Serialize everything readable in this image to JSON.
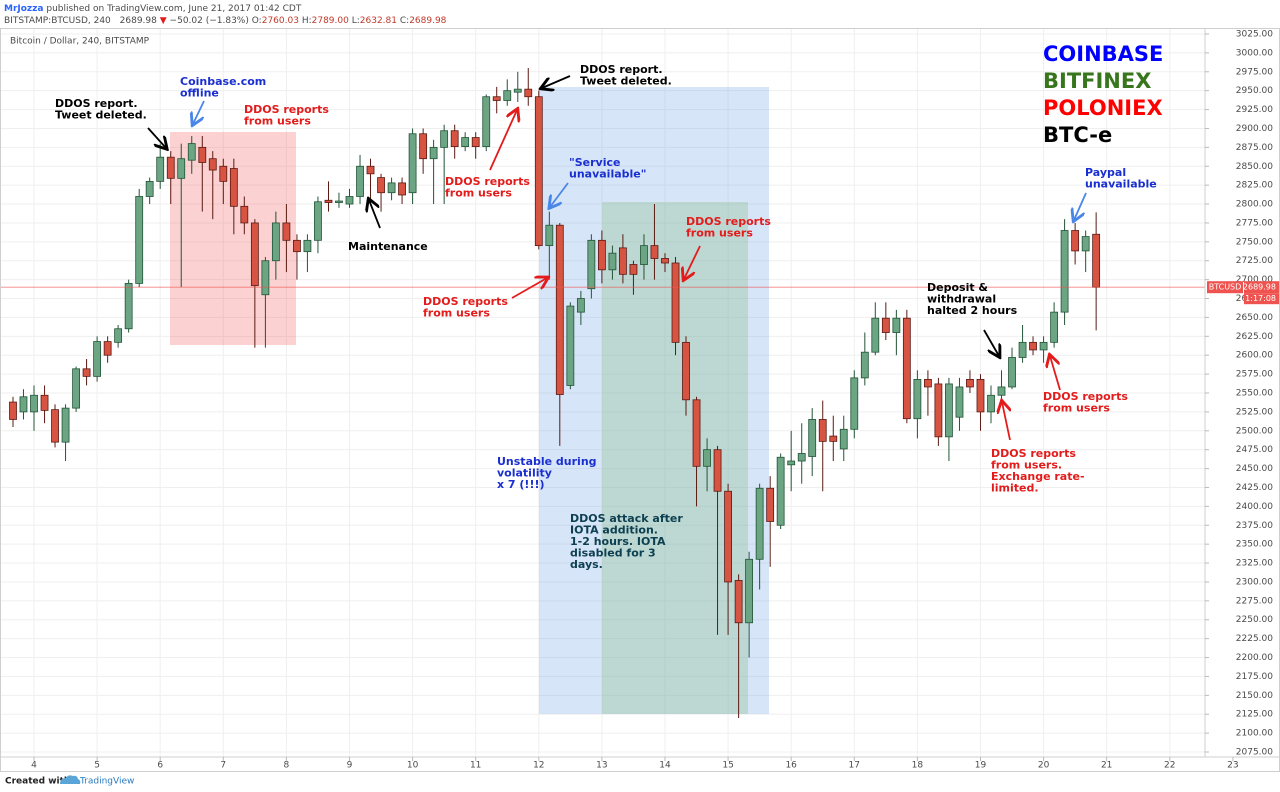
{
  "header": {
    "author": "MrJozza",
    "published": "published on TradingView.com, June 21, 2017 01:42 CDT",
    "symbol": "BITSTAMP:BTCUSD, 240",
    "price": "2689.98",
    "direction": "▼",
    "change": "−50.02 (−1.83%)",
    "ohlc": [
      {
        "label": "O:",
        "value": "2760.03"
      },
      {
        "label": "H:",
        "value": "2789.00"
      },
      {
        "label": "L:",
        "value": "2632.81"
      },
      {
        "label": "C:",
        "value": "2689.98"
      }
    ]
  },
  "footer": {
    "created": "Created with",
    "brand": "TradingView"
  },
  "chart_data": {
    "type": "candlestick",
    "title": "Bitcoin / Dollar, 240, BITSTAMP",
    "up_color": "#6ba583",
    "up_border": "#225437",
    "down_color": "#d75442",
    "down_border": "#5b1a13",
    "x": [
      3.667,
      3.833,
      4,
      4.167,
      4.333,
      4.5,
      4.667,
      4.833,
      5,
      5.167,
      5.333,
      5.5,
      5.667,
      5.833,
      6,
      6.167,
      6.333,
      6.5,
      6.667,
      6.833,
      7,
      7.167,
      7.333,
      7.5,
      7.667,
      7.833,
      8,
      8.167,
      8.333,
      8.5,
      8.667,
      8.833,
      9,
      9.167,
      9.333,
      9.5,
      9.667,
      9.833,
      10,
      10.167,
      10.333,
      10.5,
      10.667,
      10.833,
      11,
      11.167,
      11.333,
      11.5,
      11.667,
      11.833,
      12,
      12.167,
      12.333,
      12.5,
      12.667,
      12.833,
      13,
      13.167,
      13.333,
      13.5,
      13.667,
      13.833,
      14,
      14.167,
      14.333,
      14.5,
      14.667,
      14.833,
      15,
      15.167,
      15.333,
      15.5,
      15.667,
      15.833,
      16,
      16.167,
      16.333,
      16.5,
      16.667,
      16.833,
      17,
      17.167,
      17.333,
      17.5,
      17.667,
      17.833,
      18,
      18.167,
      18.333,
      18.5,
      18.667,
      18.833,
      19,
      19.167,
      19.333,
      19.5,
      19.667,
      19.833,
      20,
      20.167,
      20.333,
      20.5,
      20.667,
      20.833
    ],
    "open": [
      2538,
      2525,
      2525,
      2547,
      2528,
      2485,
      2530,
      2582,
      2572,
      2618,
      2617,
      2635,
      2695,
      2810,
      2830,
      2862,
      2834,
      2858,
      2875,
      2860,
      2850,
      2847,
      2797,
      2775,
      2680,
      2725,
      2775,
      2752,
      2737,
      2752,
      2805,
      2802,
      2800,
      2810,
      2850,
      2835,
      2815,
      2828,
      2815,
      2893,
      2860,
      2875,
      2897,
      2876,
      2888,
      2876,
      2942,
      2937,
      2948,
      2952,
      2942,
      2745,
      2772,
      2560,
      2657,
      2688,
      2752,
      2713,
      2742,
      2720,
      2720,
      2745,
      2728,
      2722,
      2617,
      2541,
      2453,
      2475,
      2420,
      2302,
      2246,
      2330,
      2424,
      2375,
      2455,
      2460,
      2466,
      2515,
      2493,
      2476,
      2502,
      2570,
      2604,
      2649,
      2630,
      2649,
      2516,
      2568,
      2562,
      2492,
      2518,
      2568,
      2568,
      2525,
      2547,
      2558,
      2597,
      2617,
      2607,
      2617,
      2657,
      2765,
      2738,
      2760.03
    ],
    "high": [
      2545,
      2555,
      2560,
      2560,
      2535,
      2535,
      2585,
      2595,
      2625,
      2625,
      2640,
      2700,
      2820,
      2835,
      2880,
      2870,
      2880,
      2890,
      2890,
      2870,
      2860,
      2860,
      2810,
      2780,
      2730,
      2790,
      2800,
      2760,
      2760,
      2810,
      2830,
      2815,
      2820,
      2865,
      2860,
      2840,
      2835,
      2835,
      2900,
      2900,
      2885,
      2905,
      2905,
      2895,
      2895,
      2945,
      2955,
      2965,
      2975,
      2980,
      2950,
      2790,
      2775,
      2670,
      2685,
      2760,
      2765,
      2745,
      2760,
      2725,
      2760,
      2800,
      2735,
      2730,
      2625,
      2545,
      2490,
      2480,
      2430,
      2310,
      2340,
      2430,
      2440,
      2470,
      2500,
      2510,
      2530,
      2540,
      2520,
      2520,
      2580,
      2630,
      2670,
      2670,
      2660,
      2660,
      2580,
      2580,
      2570,
      2570,
      2570,
      2580,
      2575,
      2560,
      2580,
      2610,
      2640,
      2625,
      2625,
      2670,
      2780,
      2775,
      2765,
      2789
    ],
    "low": [
      2505,
      2515,
      2500,
      2510,
      2478,
      2460,
      2525,
      2560,
      2565,
      2590,
      2610,
      2630,
      2690,
      2800,
      2820,
      2800,
      2690,
      2840,
      2790,
      2780,
      2800,
      2760,
      2760,
      2610,
      2610,
      2700,
      2710,
      2700,
      2710,
      2735,
      2790,
      2795,
      2795,
      2800,
      2800,
      2790,
      2805,
      2800,
      2800,
      2840,
      2800,
      2800,
      2860,
      2870,
      2860,
      2870,
      2920,
      2930,
      2935,
      2930,
      2740,
      2700,
      2480,
      2555,
      2640,
      2675,
      2695,
      2700,
      2695,
      2680,
      2700,
      2700,
      2710,
      2600,
      2520,
      2400,
      2420,
      2230,
      2230,
      2120,
      2200,
      2290,
      2320,
      2370,
      2420,
      2430,
      2440,
      2420,
      2460,
      2460,
      2490,
      2560,
      2600,
      2620,
      2600,
      2510,
      2490,
      2520,
      2480,
      2460,
      2500,
      2550,
      2500,
      2510,
      2540,
      2555,
      2590,
      2600,
      2590,
      2610,
      2640,
      2720,
      2710,
      2632.81
    ],
    "close": [
      2515,
      2545,
      2547,
      2527,
      2485,
      2530,
      2582,
      2572,
      2618,
      2600,
      2635,
      2695,
      2810,
      2830,
      2862,
      2834,
      2860,
      2880,
      2855,
      2845,
      2830,
      2797,
      2775,
      2692,
      2725,
      2775,
      2752,
      2737,
      2752,
      2803,
      2802,
      2804,
      2810,
      2850,
      2840,
      2815,
      2828,
      2812,
      2893,
      2860,
      2875,
      2897,
      2876,
      2888,
      2876,
      2942,
      2937,
      2950,
      2952,
      2942,
      2745,
      2772,
      2548,
      2665,
      2675,
      2752,
      2713,
      2735,
      2707,
      2707,
      2745,
      2728,
      2722,
      2617,
      2541,
      2453,
      2475,
      2420,
      2300,
      2246,
      2330,
      2424,
      2380,
      2465,
      2460,
      2470,
      2515,
      2486,
      2486,
      2502,
      2570,
      2604,
      2649,
      2630,
      2649,
      2516,
      2568,
      2558,
      2492,
      2562,
      2558,
      2558,
      2525,
      2547,
      2558,
      2597,
      2617,
      2607,
      2617,
      2657,
      2765,
      2738,
      2757,
      2689.98
    ],
    "xlim": [
      3.461,
      23.113
    ],
    "xticks": [
      4,
      5,
      6,
      7,
      8,
      9,
      10,
      11,
      12,
      13,
      14,
      15,
      16,
      17,
      18,
      19,
      20,
      21,
      22,
      23
    ],
    "ylim": [
      2068.4,
      3031.6
    ],
    "yticks": [
      {
        "value": 2075,
        "label": "2075.00"
      },
      {
        "value": 2100,
        "label": "2100.00"
      },
      {
        "value": 2125,
        "label": "2125.00"
      },
      {
        "value": 2150,
        "label": "2150.00"
      },
      {
        "value": 2175,
        "label": "2175.00"
      },
      {
        "value": 2200,
        "label": "2200.00"
      },
      {
        "value": 2225,
        "label": "2225.00"
      },
      {
        "value": 2250,
        "label": "2250.00"
      },
      {
        "value": 2275,
        "label": "2275.00"
      },
      {
        "value": 2300,
        "label": "2300.00"
      },
      {
        "value": 2325,
        "label": "2325.00"
      },
      {
        "value": 2350,
        "label": "2350.00"
      },
      {
        "value": 2375,
        "label": "2375.00"
      },
      {
        "value": 2400,
        "label": "2400.00"
      },
      {
        "value": 2425,
        "label": "2425.00"
      },
      {
        "value": 2450,
        "label": "2450.00"
      },
      {
        "value": 2475,
        "label": "2475.00"
      },
      {
        "value": 2500,
        "label": "2500.00"
      },
      {
        "value": 2525,
        "label": "2525.00"
      },
      {
        "value": 2550,
        "label": "2550.00"
      },
      {
        "value": 2575,
        "label": "2575.00"
      },
      {
        "value": 2600,
        "label": "2600.00"
      },
      {
        "value": 2625,
        "label": "2625.00"
      },
      {
        "value": 2650,
        "label": "2650.00"
      },
      {
        "value": 2675,
        "label": "2675.00"
      },
      {
        "value": 2700,
        "label": "2700.00"
      },
      {
        "value": 2725,
        "label": "2725.00"
      },
      {
        "value": 2750,
        "label": "2750.00"
      },
      {
        "value": 2775,
        "label": "2775.00"
      },
      {
        "value": 2800,
        "label": "2800.00"
      },
      {
        "value": 2825,
        "label": "2825.00"
      },
      {
        "value": 2850,
        "label": "2850.00"
      },
      {
        "value": 2875,
        "label": "2875.00"
      },
      {
        "value": 2900,
        "label": "2900.00"
      },
      {
        "value": 2925,
        "label": "2925.00"
      },
      {
        "value": 2950,
        "label": "2950.00"
      },
      {
        "value": 2975,
        "label": "2975.00"
      },
      {
        "value": 3000,
        "label": "3000.00"
      },
      {
        "value": 3025,
        "label": "3025.00"
      }
    ],
    "grid": true,
    "last_price": 2689.98,
    "last_price_color": "#ef5350",
    "symbol_label": "BTCUSD",
    "countdown": "1:17:08",
    "legend": [
      {
        "name": "COINBASE",
        "color": "#0000ff"
      },
      {
        "name": "BITFINEX",
        "color": "#38761d"
      },
      {
        "name": "POLONIEX",
        "color": "#ff0000"
      },
      {
        "name": "BTC-e",
        "color": "#000000"
      }
    ],
    "annotations": [
      {
        "lines": [
          "DDOS report.",
          "Tweet deleted."
        ],
        "color": "#000000"
      },
      {
        "lines": [
          "Coinbase.com",
          "offline"
        ],
        "color": "#1a2fd0"
      },
      {
        "lines": [
          "DDOS reports",
          "from users"
        ],
        "color": "#e31b1b"
      },
      {
        "lines": [
          "DDOS report.",
          "Tweet deleted."
        ],
        "color": "#000000"
      },
      {
        "lines": [
          "DDOS reports",
          "from users"
        ],
        "color": "#e31b1b"
      },
      {
        "lines": [
          "\"Service",
          "unavailable\""
        ],
        "color": "#1a2fd0"
      },
      {
        "lines": [
          "Maintenance"
        ],
        "color": "#000000"
      },
      {
        "lines": [
          "DDOS reports",
          "from users"
        ],
        "color": "#e31b1b"
      },
      {
        "lines": [
          "DDOS reports",
          "from users"
        ],
        "color": "#e31b1b"
      },
      {
        "lines": [
          "Unstable during",
          "volatility",
          "x 7 (!!!)"
        ],
        "color": "#1a2fd0"
      },
      {
        "lines": [
          "DDOS attack after",
          "IOTA addition.",
          "1-2 hours. IOTA",
          "disabled for 3",
          "days."
        ],
        "color": "#0d4050"
      },
      {
        "lines": [
          "Paypal",
          "unavailable"
        ],
        "color": "#1a2fd0"
      },
      {
        "lines": [
          "Deposit &",
          "withdrawal",
          "halted 2 hours"
        ],
        "color": "#000000"
      },
      {
        "lines": [
          "DDOS reports",
          "from users"
        ],
        "color": "#e31b1b"
      },
      {
        "lines": [
          "DDOS reports",
          "from users.",
          "Exchange rate-",
          "limited."
        ],
        "color": "#e31b1b"
      }
    ]
  }
}
